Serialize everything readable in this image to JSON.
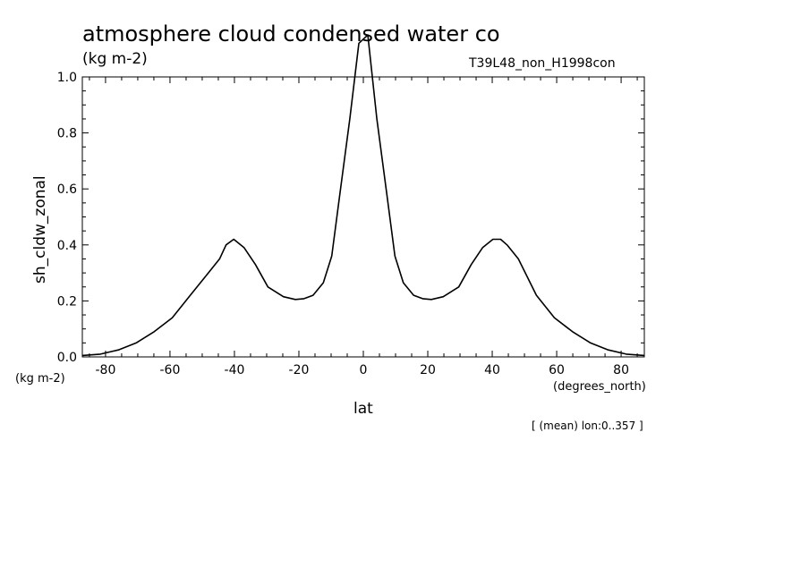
{
  "header": {
    "title": "atmosphere cloud condensed water co",
    "subtitle": "(kg m-2)",
    "run_label": "T39L48_non_H1998con"
  },
  "footnote": "[ (mean) lon:0..357 ]",
  "chart_data": {
    "type": "line",
    "title": "atmosphere cloud condensed water co",
    "subtitle": "(kg m-2)",
    "xlabel": "lat",
    "ylabel": "sh_cldw_zonal",
    "x_unit": "(degrees_north)",
    "y_unit": "(kg m-2)",
    "xlim": [
      -87.2,
      87.2
    ],
    "ylim": [
      0,
      1.0
    ],
    "x_ticks": [
      -80,
      -60,
      -40,
      -20,
      0,
      20,
      40,
      60,
      80
    ],
    "y_ticks": [
      0.0,
      0.2,
      0.4,
      0.6,
      0.8,
      1.0
    ],
    "x_tick_labels": [
      "-80",
      "-60",
      "-40",
      "-20",
      "0",
      "20",
      "40",
      "60",
      "80"
    ],
    "y_tick_labels": [
      "0.0",
      "0.2",
      "0.4",
      "0.6",
      "0.8",
      "1.0"
    ],
    "grid": false,
    "line_color": "#000000",
    "series": [
      {
        "x": [
          -87.2,
          -81.6,
          -76.0,
          -70.5,
          -64.9,
          -59.3,
          -53.7,
          -48.1,
          -44.6,
          -42.6,
          -40.2,
          -37.0,
          -33.5,
          -29.6,
          -24.8,
          -21.1,
          -18.4,
          -15.6,
          -12.4,
          -9.8,
          -7.3,
          -4.2,
          -1.4,
          1.4,
          4.2,
          7.3,
          9.8,
          12.4,
          15.6,
          18.4,
          21.1,
          24.8,
          29.6,
          33.5,
          37.0,
          40.2,
          42.6,
          44.6,
          48.1,
          53.7,
          59.3,
          64.9,
          70.5,
          76.0,
          81.6,
          87.2
        ],
        "y": [
          0.005,
          0.01,
          0.025,
          0.05,
          0.09,
          0.14,
          0.22,
          0.3,
          0.35,
          0.4,
          0.42,
          0.39,
          0.33,
          0.25,
          0.215,
          0.205,
          0.208,
          0.22,
          0.265,
          0.36,
          0.58,
          0.85,
          1.12,
          1.15,
          0.85,
          0.58,
          0.36,
          0.265,
          0.22,
          0.208,
          0.205,
          0.215,
          0.25,
          0.33,
          0.39,
          0.42,
          0.42,
          0.4,
          0.35,
          0.22,
          0.14,
          0.09,
          0.05,
          0.025,
          0.01,
          0.005
        ]
      }
    ]
  }
}
